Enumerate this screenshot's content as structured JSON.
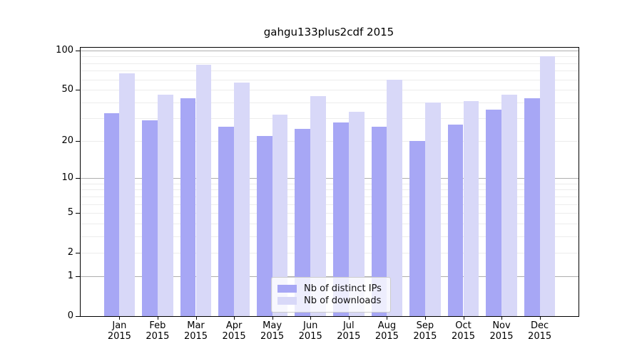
{
  "chart_data": {
    "type": "bar",
    "title": "gahgu133plus2cdf 2015",
    "year": "2015",
    "categories": [
      "Jan",
      "Feb",
      "Mar",
      "Apr",
      "May",
      "Jun",
      "Jul",
      "Aug",
      "Sep",
      "Oct",
      "Nov",
      "Dec"
    ],
    "series": [
      {
        "name": "Nb of distinct IPs",
        "color": "#a7a7f5",
        "values": [
          33,
          29,
          43,
          26,
          22,
          25,
          28,
          26,
          20,
          27,
          35,
          43
        ]
      },
      {
        "name": "Nb of downloads",
        "color": "#d8d8f8",
        "values": [
          67,
          46,
          78,
          57,
          32,
          45,
          34,
          60,
          40,
          41,
          46,
          90
        ]
      }
    ],
    "xlabel": "",
    "ylabel": "",
    "yscale": "log1p",
    "ylim": [
      0,
      105
    ],
    "yticks": [
      100,
      50,
      20,
      10,
      5,
      2,
      1,
      0
    ],
    "grid": {
      "minor": [
        2,
        3,
        4,
        5,
        6,
        7,
        8,
        9,
        20,
        30,
        40,
        50,
        60,
        70,
        80,
        90
      ],
      "major": [
        1,
        10,
        100
      ]
    },
    "legend_position": "bottom-center"
  }
}
